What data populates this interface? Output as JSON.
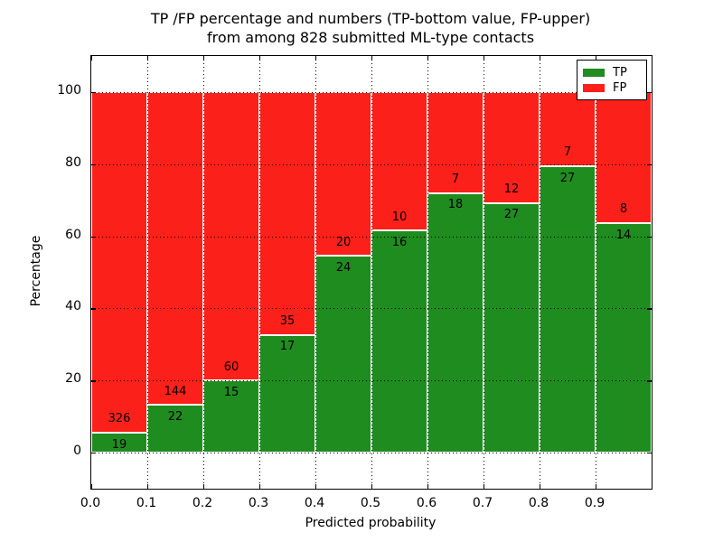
{
  "figure": {
    "title_line1": "TP /FP percentage and numbers (TP-bottom value, FP-upper)",
    "title_line2": "from among 828 submitted ML-type contacts"
  },
  "chart_data": {
    "type": "bar",
    "stacked": true,
    "title": "TP /FP percentage and numbers (TP-bottom value, FP-upper) from among 828 submitted ML-type contacts",
    "xlabel": "Predicted probability",
    "ylabel": "Percentage",
    "xlim": [
      0.0,
      1.0
    ],
    "ylim": [
      -10,
      110
    ],
    "xticks": [
      "0.0",
      "0.1",
      "0.2",
      "0.3",
      "0.4",
      "0.5",
      "0.6",
      "0.7",
      "0.8",
      "0.9"
    ],
    "yticks": [
      0,
      20,
      40,
      60,
      80,
      100
    ],
    "grid": "dotted both axes",
    "bin_edges": [
      0.0,
      0.1,
      0.2,
      0.3,
      0.4,
      0.5,
      0.6,
      0.7,
      0.8,
      0.9,
      1.0
    ],
    "total_contacts": 828,
    "series": [
      {
        "name": "TP",
        "color": "#1f8c1f",
        "counts": [
          19,
          22,
          15,
          17,
          24,
          16,
          18,
          27,
          27,
          14
        ]
      },
      {
        "name": "FP",
        "color": "#fb201a",
        "counts": [
          326,
          144,
          60,
          35,
          20,
          10,
          7,
          12,
          7,
          8
        ]
      }
    ],
    "tp_percent": [
      5.51,
      13.25,
      20.0,
      32.69,
      54.55,
      61.54,
      72.0,
      69.23,
      79.41,
      63.64
    ],
    "legend": {
      "position": "upper right",
      "entries": [
        {
          "label": "TP",
          "color": "#1f8c1f"
        },
        {
          "label": "FP",
          "color": "#fb201a"
        }
      ]
    }
  }
}
